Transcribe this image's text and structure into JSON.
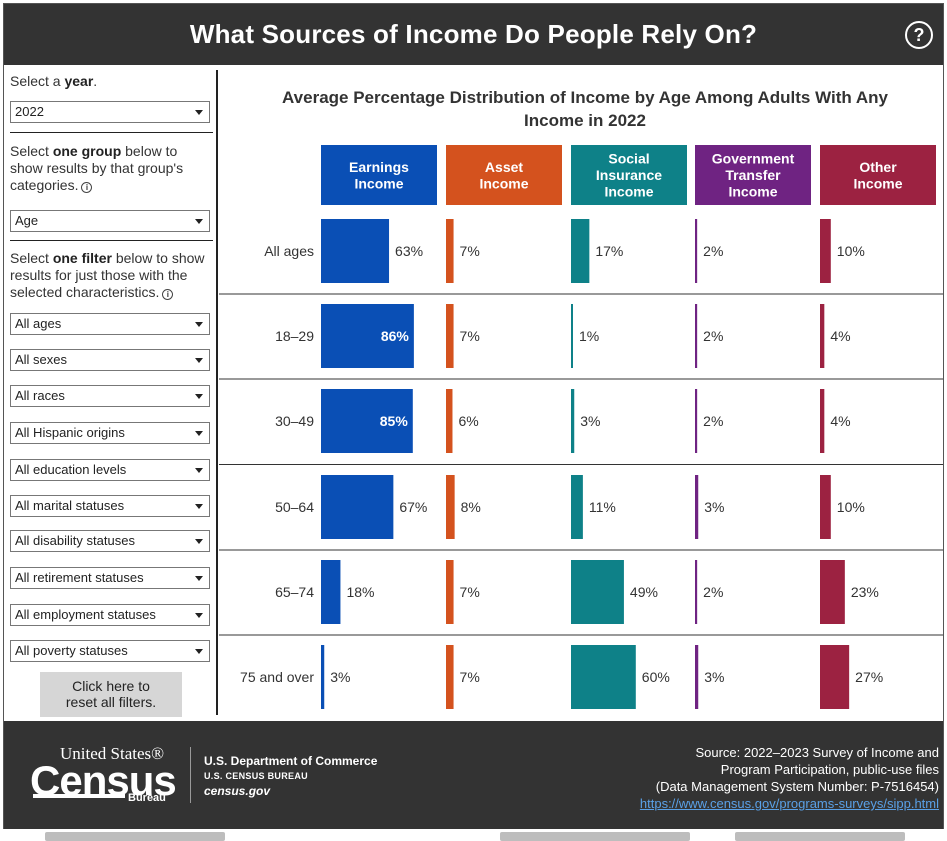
{
  "header": {
    "title": "What Sources of Income Do People Rely On?",
    "help_icon": "?"
  },
  "sidebar": {
    "year_prompt_pre": "Select a ",
    "year_prompt_bold": "year",
    "year_prompt_post": ".",
    "year_value": "2022",
    "group_prompt_pre": "Select ",
    "group_prompt_bold": "one group",
    "group_prompt_post": " below to show results by that group's categories.",
    "group_value": "Age",
    "filter_prompt_pre": "Select ",
    "filter_prompt_bold": "one filter",
    "filter_prompt_post": " below to show results for just those with the selected characteristics.",
    "info_glyph": "i",
    "filters": [
      "All ages",
      "All sexes",
      "All races",
      "All Hispanic origins",
      "All education levels",
      "All marital statuses",
      "All disability statuses",
      "All retirement statuses",
      "All employment statuses",
      "All poverty statuses"
    ],
    "reset_label_1": "Click here to",
    "reset_label_2": "reset all filters."
  },
  "chart_data": {
    "type": "bar",
    "title_line1": "Average Percentage Distribution of Income by Age Among Adults With Any",
    "title_line2": "Income in 2022",
    "categories": [
      "All ages",
      "18–29",
      "30–49",
      "50–64",
      "65–74",
      "75 and over"
    ],
    "series": [
      {
        "name": "Earnings Income",
        "header": [
          "Earnings",
          "Income"
        ],
        "color": "#0a4fb5",
        "values": [
          63,
          86,
          85,
          67,
          18,
          3
        ]
      },
      {
        "name": "Asset Income",
        "header": [
          "Asset",
          "Income"
        ],
        "color": "#d4521e",
        "values": [
          7,
          7,
          6,
          8,
          7,
          7
        ]
      },
      {
        "name": "Social Insurance Income",
        "header": [
          "Social",
          "Insurance",
          "Income"
        ],
        "color": "#0e8188",
        "values": [
          17,
          1,
          3,
          11,
          49,
          60
        ]
      },
      {
        "name": "Government Transfer Income",
        "header": [
          "Government",
          "Transfer",
          "Income"
        ],
        "color": "#6f2382",
        "values": [
          2,
          2,
          2,
          3,
          2,
          3
        ]
      },
      {
        "name": "Other Income",
        "header": [
          "Other",
          "Income"
        ],
        "color": "#9c2241",
        "values": [
          10,
          4,
          4,
          10,
          23,
          27
        ]
      }
    ],
    "value_suffix": "%",
    "xlim": [
      0,
      100
    ]
  },
  "footer": {
    "logo_united_states": "United States®",
    "logo_census": "Census",
    "logo_bureau": "Bureau",
    "dept": "U.S. Department of Commerce",
    "bureau": "U.S. CENSUS BUREAU",
    "site": "census.gov",
    "source_1": "Source: 2022–2023 Survey of Income and",
    "source_2": "Program Participation, public-use files",
    "source_3": "(Data Management System Number: P-7516454)",
    "source_link": "https://www.census.gov/programs-surveys/sipp.html"
  }
}
